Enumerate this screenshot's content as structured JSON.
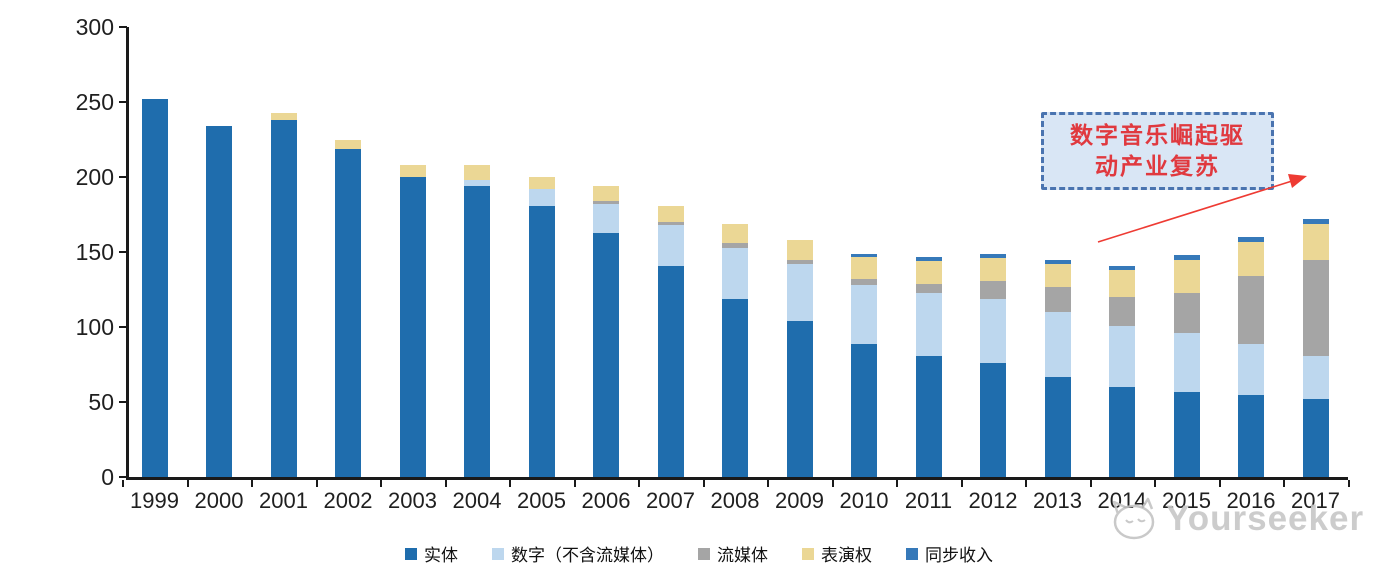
{
  "chart_data": {
    "type": "bar",
    "stacked": true,
    "title": "",
    "xlabel": "",
    "ylabel": "",
    "ylim": [
      0,
      300
    ],
    "yticks": [
      0,
      50,
      100,
      150,
      200,
      250,
      300
    ],
    "grid": false,
    "legend_position": "bottom",
    "categories": [
      "1999",
      "2000",
      "2001",
      "2002",
      "2003",
      "2004",
      "2005",
      "2006",
      "2007",
      "2008",
      "2009",
      "2010",
      "2011",
      "2012",
      "2013",
      "2014",
      "2015",
      "2016",
      "2017"
    ],
    "series": [
      {
        "name": "实体",
        "color": "#1f6dad",
        "values": [
          252,
          234,
          238,
          219,
          200,
          194,
          181,
          163,
          141,
          119,
          104,
          89,
          81,
          76,
          67,
          60,
          57,
          55,
          52
        ]
      },
      {
        "name": "数字（不含流媒体）",
        "color": "#bdd7ee",
        "values": [
          0,
          0,
          0,
          0,
          0,
          4,
          11,
          19,
          27,
          34,
          38,
          39,
          42,
          43,
          43,
          41,
          39,
          34,
          29
        ]
      },
      {
        "name": "流媒体",
        "color": "#a5a5a5",
        "values": [
          0,
          0,
          0,
          0,
          0,
          0,
          0,
          2,
          2,
          3,
          3,
          4,
          6,
          12,
          17,
          19,
          27,
          45,
          64
        ]
      },
      {
        "name": "表演权",
        "color": "#ebd795",
        "values": [
          0,
          0,
          5,
          6,
          8,
          10,
          8,
          10,
          11,
          13,
          13,
          15,
          15,
          15,
          15,
          18,
          22,
          23,
          24
        ]
      },
      {
        "name": "同步收入",
        "color": "#3679b9",
        "values": [
          0,
          0,
          0,
          0,
          0,
          0,
          0,
          0,
          0,
          0,
          0,
          2,
          3,
          3,
          3,
          3,
          3,
          3,
          3
        ]
      }
    ]
  },
  "annotation": {
    "line1": "数字音乐崛起驱",
    "line2": "动产业复苏"
  },
  "watermark": {
    "text": "Yourseeker"
  }
}
